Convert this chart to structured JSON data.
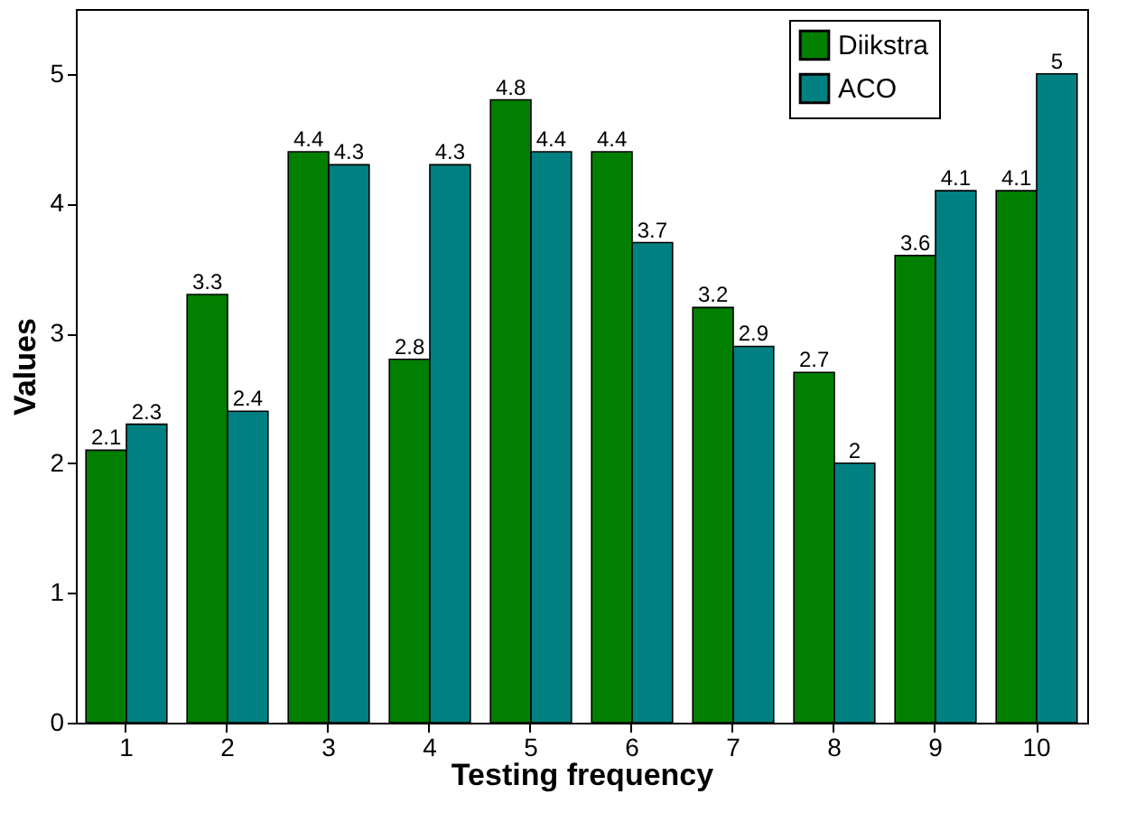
{
  "chart_data": {
    "type": "bar",
    "xlabel": "Testing frequency",
    "ylabel": "Values",
    "categories": [
      "1",
      "2",
      "3",
      "4",
      "5",
      "6",
      "7",
      "8",
      "9",
      "10"
    ],
    "series": [
      {
        "name": "Diikstra",
        "color": "#007f00",
        "values": [
          2.1,
          3.3,
          4.4,
          2.8,
          4.8,
          4.4,
          3.2,
          2.7,
          3.6,
          4.1
        ]
      },
      {
        "name": "ACO",
        "color": "#008080",
        "values": [
          2.3,
          2.4,
          4.3,
          4.3,
          4.4,
          3.7,
          2.9,
          2.0,
          4.1,
          5
        ]
      }
    ],
    "ylim": [
      0,
      5.5
    ],
    "yticks": [
      0,
      1,
      2,
      3,
      4,
      5
    ],
    "grid": false,
    "legend": "top right",
    "data_labels": true
  }
}
